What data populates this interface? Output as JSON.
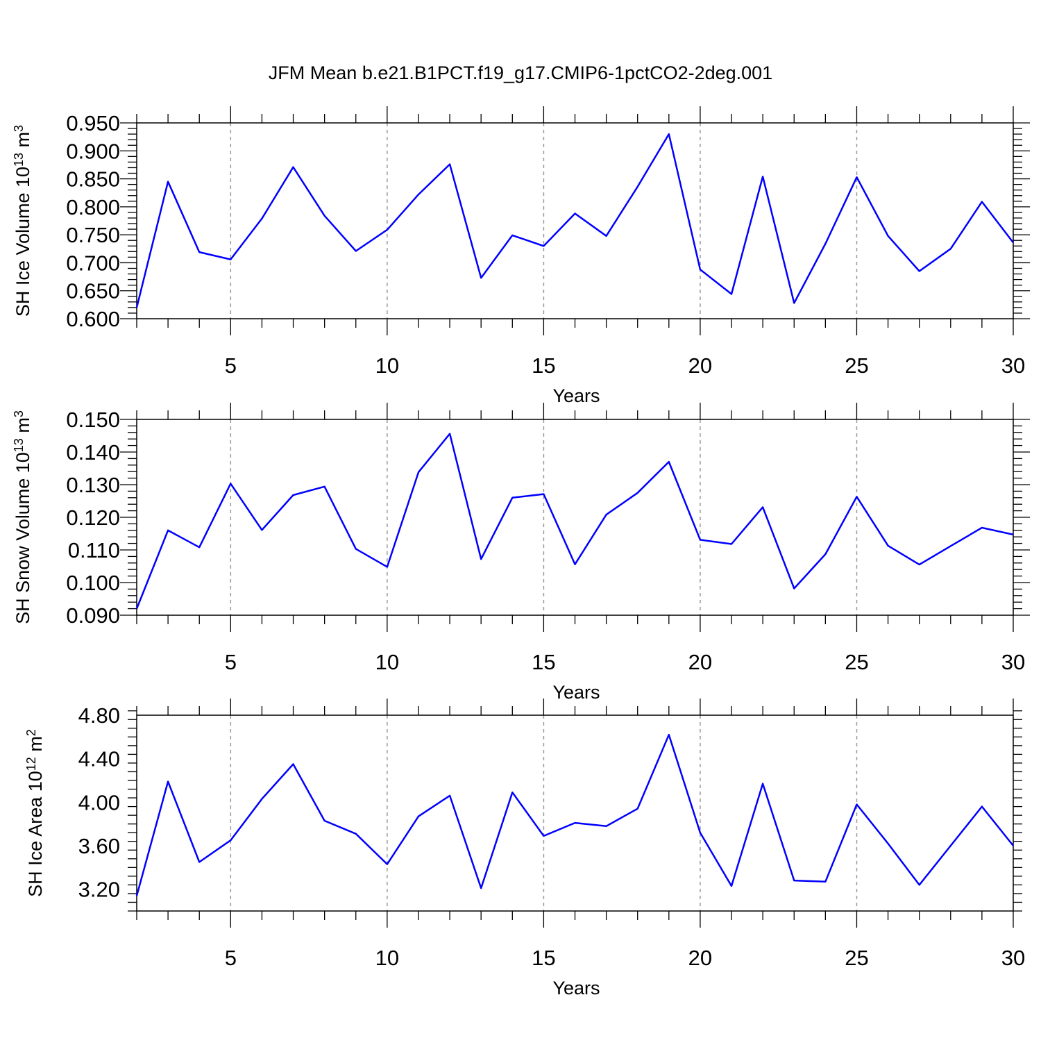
{
  "figure": {
    "title": "JFM Mean b.e21.B1PCT.f19_g17.CMIP6-1pctCO2-2deg.001"
  },
  "chart_data": [
    {
      "type": "line",
      "ylabel": "SH Ice Volume 10",
      "ylabel_exp": "13",
      "ylabel_unit": " m",
      "ylabel_unit_exp": "3",
      "xlabel": "Years",
      "xlim": [
        2,
        30
      ],
      "ylim": [
        0.6,
        0.95
      ],
      "xticks": [
        5,
        10,
        15,
        20,
        25,
        30
      ],
      "xtick_labels": [
        "5",
        "10",
        "15",
        "20",
        "25",
        "30"
      ],
      "yticks": [
        0.6,
        0.65,
        0.7,
        0.75,
        0.8,
        0.85,
        0.9,
        0.95
      ],
      "ytick_labels": [
        "0.600",
        "0.650",
        "0.700",
        "0.750",
        "0.800",
        "0.850",
        "0.900",
        "0.950"
      ],
      "grid": "vertical dashed at major x ticks",
      "line_color": "#0000ff",
      "x": [
        2,
        3,
        4,
        5,
        6,
        7,
        8,
        9,
        10,
        11,
        12,
        13,
        14,
        15,
        16,
        17,
        18,
        19,
        20,
        21,
        22,
        23,
        24,
        25,
        26,
        27,
        28,
        29,
        30
      ],
      "values": [
        0.62,
        0.845,
        0.719,
        0.706,
        0.779,
        0.871,
        0.784,
        0.721,
        0.759,
        0.822,
        0.876,
        0.673,
        0.749,
        0.73,
        0.788,
        0.748,
        0.836,
        0.93,
        0.688,
        0.644,
        0.854,
        0.628,
        0.734,
        0.853,
        0.748,
        0.685,
        0.725,
        0.809,
        0.736
      ]
    },
    {
      "type": "line",
      "ylabel": "SH Snow Volume 10",
      "ylabel_exp": "13",
      "ylabel_unit": " m",
      "ylabel_unit_exp": "3",
      "xlabel": "Years",
      "xlim": [
        2,
        30
      ],
      "ylim": [
        0.09,
        0.15
      ],
      "xticks": [
        5,
        10,
        15,
        20,
        25,
        30
      ],
      "xtick_labels": [
        "5",
        "10",
        "15",
        "20",
        "25",
        "30"
      ],
      "yticks": [
        0.09,
        0.1,
        0.11,
        0.12,
        0.13,
        0.14,
        0.15
      ],
      "ytick_labels": [
        "0.090",
        "0.100",
        "0.110",
        "0.120",
        "0.130",
        "0.140",
        "0.150"
      ],
      "grid": "vertical dashed at major x ticks",
      "line_color": "#0000ff",
      "x": [
        2,
        3,
        4,
        5,
        6,
        7,
        8,
        9,
        10,
        11,
        12,
        13,
        14,
        15,
        16,
        17,
        18,
        19,
        20,
        21,
        22,
        23,
        24,
        25,
        26,
        27,
        28,
        29,
        30
      ],
      "values": [
        0.092,
        0.116,
        0.1108,
        0.1303,
        0.1161,
        0.1268,
        0.1294,
        0.1103,
        0.1048,
        0.1338,
        0.1456,
        0.1072,
        0.126,
        0.1271,
        0.1056,
        0.1208,
        0.1275,
        0.137,
        0.1131,
        0.1118,
        0.1231,
        0.0982,
        0.1087,
        0.1263,
        0.1113,
        0.1055,
        0.1112,
        0.1168,
        0.1147
      ]
    },
    {
      "type": "line",
      "ylabel": "SH Ice Area 10",
      "ylabel_exp": "12",
      "ylabel_unit": " m",
      "ylabel_unit_exp": "2",
      "xlabel": "Years",
      "xlim": [
        2,
        30
      ],
      "ylim": [
        3.0,
        4.8
      ],
      "xticks": [
        5,
        10,
        15,
        20,
        25,
        30
      ],
      "xtick_labels": [
        "5",
        "10",
        "15",
        "20",
        "25",
        "30"
      ],
      "yticks": [
        3.2,
        3.6,
        4.0,
        4.4,
        4.8
      ],
      "ytick_labels": [
        "3.20",
        "3.60",
        "4.00",
        "4.40",
        "4.80"
      ],
      "grid": "vertical dashed at major x ticks",
      "line_color": "#0000ff",
      "x": [
        2,
        3,
        4,
        5,
        6,
        7,
        8,
        9,
        10,
        11,
        12,
        13,
        14,
        15,
        16,
        17,
        18,
        19,
        20,
        21,
        22,
        23,
        24,
        25,
        26,
        27,
        28,
        29,
        30
      ],
      "values": [
        3.14,
        4.19,
        3.45,
        3.65,
        4.03,
        4.35,
        3.83,
        3.71,
        3.43,
        3.87,
        4.06,
        3.21,
        4.09,
        3.69,
        3.81,
        3.78,
        3.94,
        4.62,
        3.72,
        3.23,
        4.17,
        3.28,
        3.27,
        3.98,
        3.62,
        3.24,
        3.6,
        3.96,
        3.6
      ]
    }
  ]
}
